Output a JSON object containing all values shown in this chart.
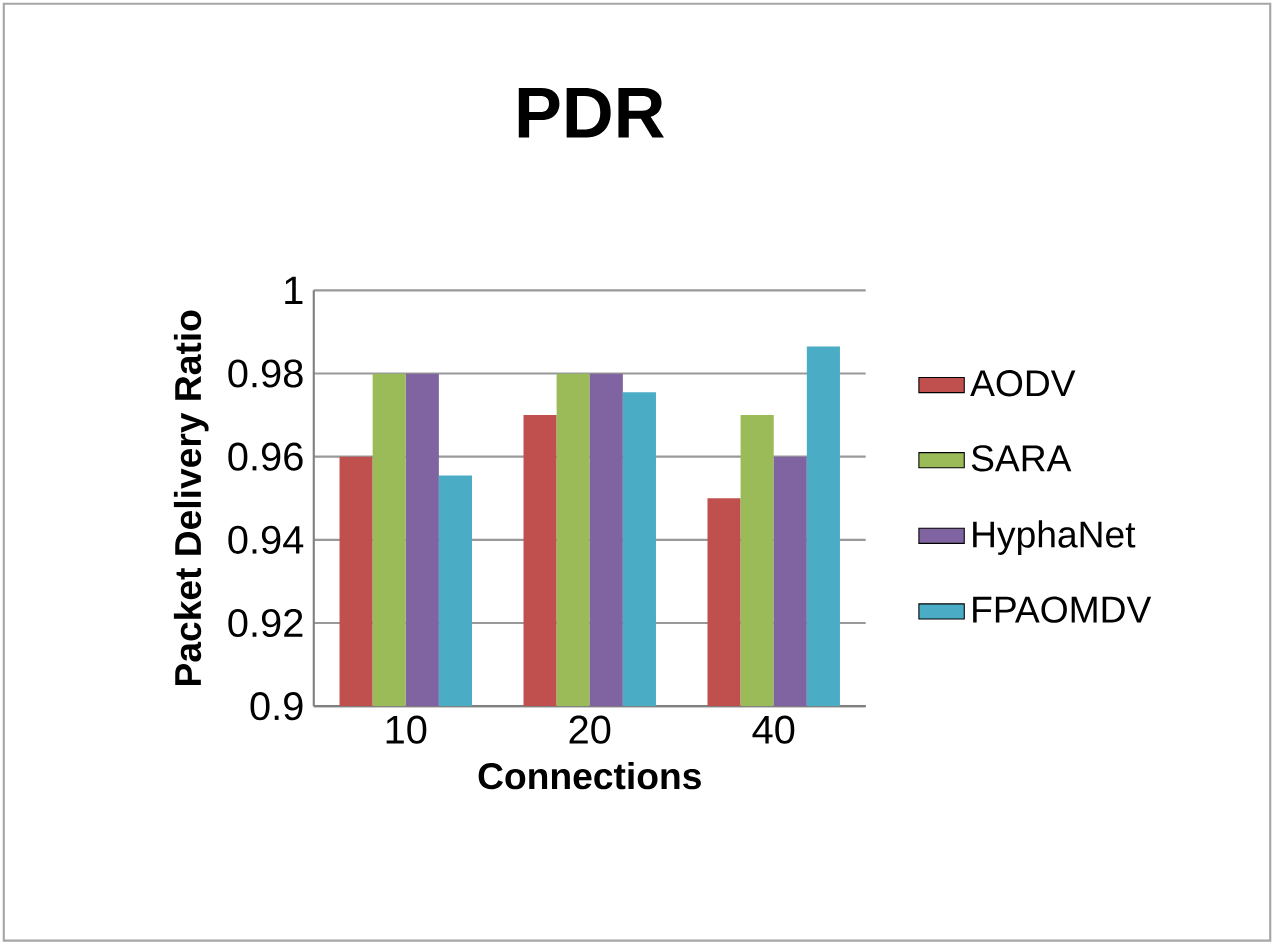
{
  "chart_data": {
    "type": "bar",
    "title": "PDR",
    "xlabel": "Connections",
    "ylabel": "Packet Delivery Ratio",
    "categories": [
      "10",
      "20",
      "40"
    ],
    "series": [
      {
        "name": "AODV",
        "color": "#c0504d",
        "values": [
          0.96,
          0.97,
          0.95
        ]
      },
      {
        "name": "SARA",
        "color": "#9bbb59",
        "values": [
          0.98,
          0.98,
          0.97
        ]
      },
      {
        "name": "HyphaNet",
        "color": "#8064a2",
        "values": [
          0.98,
          0.98,
          0.96
        ]
      },
      {
        "name": "FPAOMDV",
        "color": "#4bacc6",
        "values": [
          0.9555,
          0.9755,
          0.9865
        ]
      }
    ],
    "ylim": [
      0.9,
      1
    ],
    "yticks": [
      0.9,
      0.92,
      0.94,
      0.96,
      0.98,
      1
    ],
    "grid": "y",
    "legend": "right"
  }
}
